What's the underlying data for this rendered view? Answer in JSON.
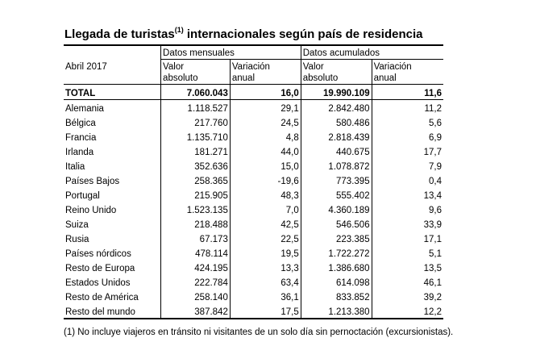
{
  "title": {
    "text_before": "Llegada de turistas",
    "sup": "(1)",
    "text_after": " internacionales según país de residencia"
  },
  "table": {
    "period": "Abril 2017",
    "group_headers": [
      "Datos mensuales",
      "Datos acumulados"
    ],
    "sub_headers_line1": [
      "Valor",
      "Variación",
      "Valor",
      "Variación"
    ],
    "sub_headers_line2": [
      "absoluto",
      "anual",
      "absoluto",
      "anual"
    ],
    "total": {
      "label": "TOTAL",
      "values": [
        "7.060.043",
        "16,0",
        "19.990.109",
        "11,6"
      ]
    },
    "rows": [
      {
        "label": "Alemania",
        "values": [
          "1.118.527",
          "29,1",
          "2.842.480",
          "11,2"
        ]
      },
      {
        "label": "Bélgica",
        "values": [
          "217.760",
          "24,5",
          "580.486",
          "5,6"
        ]
      },
      {
        "label": "Francia",
        "values": [
          "1.135.710",
          "4,8",
          "2.818.439",
          "6,9"
        ]
      },
      {
        "label": "Irlanda",
        "values": [
          "181.271",
          "44,0",
          "440.675",
          "17,7"
        ]
      },
      {
        "label": "Italia",
        "values": [
          "352.636",
          "15,0",
          "1.078.872",
          "7,9"
        ]
      },
      {
        "label": "Países Bajos",
        "values": [
          "258.365",
          "-19,6",
          "773.395",
          "0,4"
        ]
      },
      {
        "label": "Portugal",
        "values": [
          "215.905",
          "48,3",
          "555.402",
          "13,4"
        ]
      },
      {
        "label": "Reino Unido",
        "values": [
          "1.523.135",
          "7,0",
          "4.360.189",
          "9,6"
        ]
      },
      {
        "label": "Suiza",
        "values": [
          "218.488",
          "42,5",
          "546.506",
          "33,9"
        ]
      },
      {
        "label": "Rusia",
        "values": [
          "67.173",
          "22,5",
          "223.385",
          "17,1"
        ]
      },
      {
        "label": "Países nórdicos",
        "values": [
          "478.114",
          "19,5",
          "1.722.272",
          "5,1"
        ]
      },
      {
        "label": "Resto de Europa",
        "values": [
          "424.195",
          "13,3",
          "1.386.680",
          "13,5"
        ]
      },
      {
        "label": "Estados Unidos",
        "values": [
          "222.784",
          "63,4",
          "614.098",
          "46,1"
        ]
      },
      {
        "label": "Resto de América",
        "values": [
          "258.140",
          "36,1",
          "833.852",
          "39,2"
        ]
      },
      {
        "label": "Resto del mundo",
        "values": [
          "387.842",
          "17,5",
          "1.213.380",
          "12,2"
        ]
      }
    ]
  },
  "footnote": "(1) No incluye viajeros en tránsito ni visitantes de un solo día sin pernoctación (excursionistas)."
}
